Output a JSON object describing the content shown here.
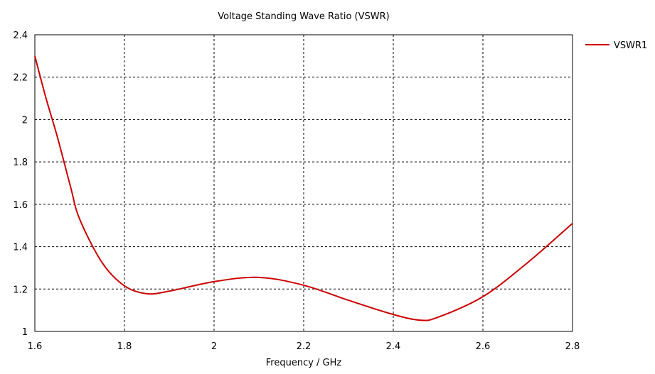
{
  "chart_data": {
    "type": "line",
    "title": "Voltage Standing Wave Ratio (VSWR)",
    "xlabel": "Frequency / GHz",
    "ylabel": "",
    "xlim": [
      1.6,
      2.8
    ],
    "ylim": [
      1.0,
      2.4
    ],
    "xticks": [
      "1.6",
      "1.8",
      "2",
      "2.2",
      "2.4",
      "2.6",
      "2.8"
    ],
    "yticks": [
      "1",
      "1.2",
      "1.4",
      "1.6",
      "1.8",
      "2",
      "2.2",
      "2.4"
    ],
    "grid": true,
    "legend_position": "right",
    "series": [
      {
        "name": "VSWR1",
        "color": "#cc0000",
        "x": [
          1.6,
          1.625,
          1.65,
          1.68,
          1.7,
          1.75,
          1.8,
          1.85,
          1.9,
          2.0,
          2.1,
          2.2,
          2.3,
          2.4,
          2.46,
          2.5,
          2.6,
          2.7,
          2.8
        ],
        "y": [
          2.3,
          2.1,
          1.92,
          1.68,
          1.53,
          1.325,
          1.215,
          1.178,
          1.19,
          1.235,
          1.255,
          1.218,
          1.147,
          1.08,
          1.053,
          1.067,
          1.164,
          1.325,
          1.51
        ]
      }
    ]
  }
}
